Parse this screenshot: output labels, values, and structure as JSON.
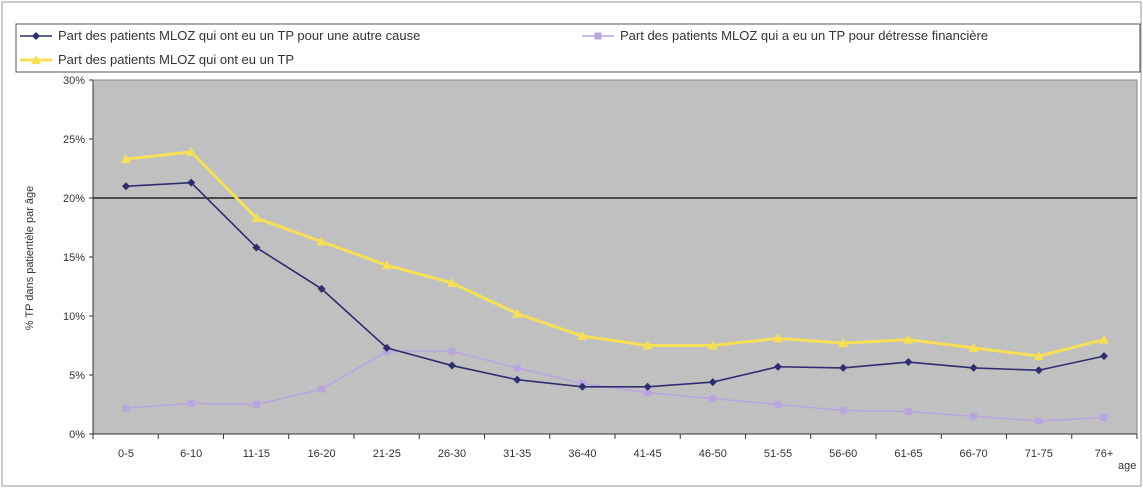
{
  "chart_data": {
    "type": "line",
    "title": "",
    "xlabel": "age",
    "ylabel": "% TP dans patientèle par âge",
    "ylim": [
      0,
      0.3
    ],
    "yticks": [
      "0%",
      "5%",
      "10%",
      "15%",
      "20%",
      "25%",
      "30%"
    ],
    "categories": [
      "0-5",
      "6-10",
      "11-15",
      "16-20",
      "21-25",
      "26-30",
      "31-35",
      "36-40",
      "41-45",
      "46-50",
      "51-55",
      "56-60",
      "61-65",
      "66-70",
      "71-75",
      "76+"
    ],
    "reference_line": 0.2,
    "grid": false,
    "legend_position": "top",
    "series": [
      {
        "name": "Part des patients MLOZ qui ont eu un TP pour une autre cause",
        "color": "#2e2e6e",
        "marker": "diamond",
        "values": [
          0.21,
          0.213,
          0.158,
          0.123,
          0.073,
          0.058,
          0.046,
          0.04,
          0.04,
          0.044,
          0.057,
          0.056,
          0.061,
          0.056,
          0.054,
          0.066
        ]
      },
      {
        "name": "Part des patients MLOZ qui a eu un TP pour détresse financière",
        "color": "#b9a6dd",
        "marker": "square",
        "values": [
          0.022,
          0.026,
          0.025,
          0.038,
          0.07,
          0.07,
          0.056,
          0.043,
          0.035,
          0.03,
          0.025,
          0.02,
          0.019,
          0.015,
          0.011,
          0.014
        ]
      },
      {
        "name": "Part des patients MLOZ qui ont eu un TP",
        "color": "#f4df55",
        "marker": "triangle",
        "values": [
          0.233,
          0.239,
          0.183,
          0.163,
          0.143,
          0.128,
          0.102,
          0.083,
          0.075,
          0.075,
          0.081,
          0.077,
          0.08,
          0.073,
          0.066,
          0.08
        ]
      }
    ]
  }
}
